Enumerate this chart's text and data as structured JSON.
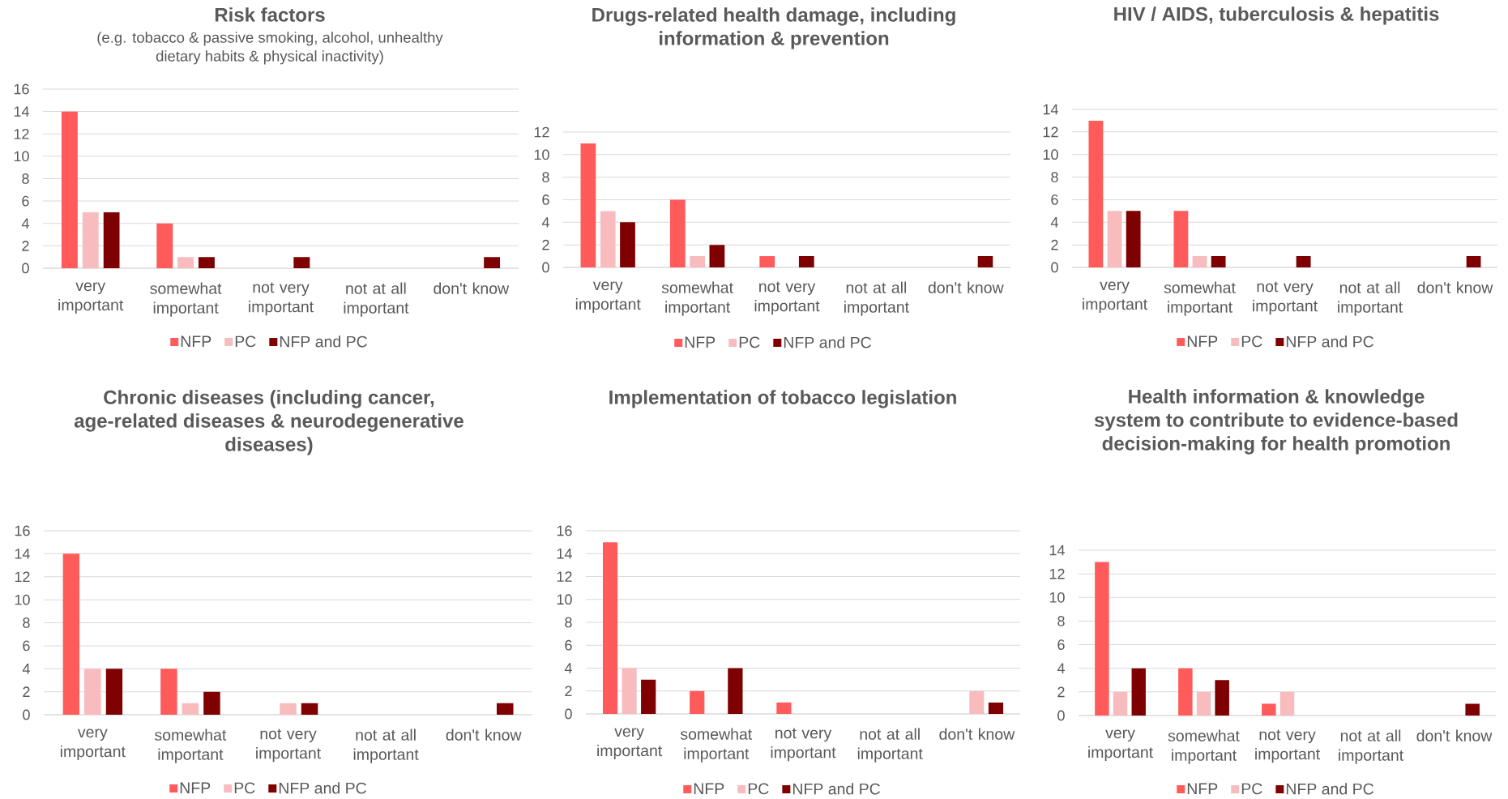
{
  "chart_data": [
    {
      "type": "bar",
      "title": "Risk factors",
      "subtitle": "(e.g. tobacco & passive smoking, alcohol, unhealthy dietary habits & physical inactivity)",
      "categories": [
        "very important",
        "somewhat important",
        "not very important",
        "not at all important",
        "don't know"
      ],
      "series": [
        {
          "name": "NFP",
          "color": "#ff5b5b",
          "values": [
            14,
            4,
            0,
            0,
            0
          ]
        },
        {
          "name": "PC",
          "color": "#f8bcbf",
          "values": [
            5,
            1,
            0,
            0,
            0
          ]
        },
        {
          "name": "NFP and PC",
          "color": "#7f0000",
          "values": [
            5,
            1,
            1,
            0,
            1
          ]
        }
      ],
      "ylim": [
        0,
        16
      ],
      "yticks": [
        0,
        2,
        4,
        6,
        8,
        10,
        12,
        14,
        16
      ],
      "grid": "y",
      "legend": "bottom"
    },
    {
      "type": "bar",
      "title": "Drugs-related health damage, including information & prevention",
      "categories": [
        "very important",
        "somewhat important",
        "not very important",
        "not at all important",
        "don't know"
      ],
      "series": [
        {
          "name": "NFP",
          "color": "#ff5b5b",
          "values": [
            11,
            6,
            1,
            0,
            0
          ]
        },
        {
          "name": "PC",
          "color": "#f8bcbf",
          "values": [
            5,
            1,
            0,
            0,
            0
          ]
        },
        {
          "name": "NFP and PC",
          "color": "#7f0000",
          "values": [
            4,
            2,
            1,
            0,
            1
          ]
        }
      ],
      "ylim": [
        0,
        12
      ],
      "yticks": [
        0,
        2,
        4,
        6,
        8,
        10,
        12
      ],
      "grid": "y",
      "legend": "bottom"
    },
    {
      "type": "bar",
      "title": "HIV / AIDS, tuberculosis & hepatitis",
      "categories": [
        "very important",
        "somewhat important",
        "not very important",
        "not at all important",
        "don't know"
      ],
      "series": [
        {
          "name": "NFP",
          "color": "#ff5b5b",
          "values": [
            13,
            5,
            0,
            0,
            0
          ]
        },
        {
          "name": "PC",
          "color": "#f8bcbf",
          "values": [
            5,
            1,
            0,
            0,
            0
          ]
        },
        {
          "name": "NFP and PC",
          "color": "#7f0000",
          "values": [
            5,
            1,
            1,
            0,
            1
          ]
        }
      ],
      "ylim": [
        0,
        14
      ],
      "yticks": [
        0,
        2,
        4,
        6,
        8,
        10,
        12,
        14
      ],
      "grid": "y",
      "legend": "bottom"
    },
    {
      "type": "bar",
      "title": "Chronic diseases (including cancer, age-related diseases & neurodegenerative diseases)",
      "categories": [
        "very important",
        "somewhat important",
        "not very important",
        "not at all important",
        "don't know"
      ],
      "series": [
        {
          "name": "NFP",
          "color": "#ff5b5b",
          "values": [
            14,
            4,
            0,
            0,
            0
          ]
        },
        {
          "name": "PC",
          "color": "#f8bcbf",
          "values": [
            4,
            1,
            1,
            0,
            0
          ]
        },
        {
          "name": "NFP and PC",
          "color": "#7f0000",
          "values": [
            4,
            2,
            1,
            0,
            1
          ]
        }
      ],
      "ylim": [
        0,
        16
      ],
      "yticks": [
        0,
        2,
        4,
        6,
        8,
        10,
        12,
        14,
        16
      ],
      "grid": "y",
      "legend": "bottom"
    },
    {
      "type": "bar",
      "title": "Implementation of tobacco legislation",
      "categories": [
        "very important",
        "somewhat important",
        "not very important",
        "not at all important",
        "don't know"
      ],
      "series": [
        {
          "name": "NFP",
          "color": "#ff5b5b",
          "values": [
            15,
            2,
            1,
            0,
            0
          ]
        },
        {
          "name": "PC",
          "color": "#f8bcbf",
          "values": [
            4,
            0,
            0,
            0,
            2
          ]
        },
        {
          "name": "NFP and PC",
          "color": "#7f0000",
          "values": [
            3,
            4,
            0,
            0,
            1
          ]
        }
      ],
      "ylim": [
        0,
        16
      ],
      "yticks": [
        0,
        2,
        4,
        6,
        8,
        10,
        12,
        14,
        16
      ],
      "grid": "y",
      "legend": "bottom"
    },
    {
      "type": "bar",
      "title": "Health information & knowledge system to contribute to evidence-based decision-making for health promotion",
      "categories": [
        "very important",
        "somewhat important",
        "not very important",
        "not at all important",
        "don't know"
      ],
      "series": [
        {
          "name": "NFP",
          "color": "#ff5b5b",
          "values": [
            13,
            4,
            1,
            0,
            0
          ]
        },
        {
          "name": "PC",
          "color": "#f8bcbf",
          "values": [
            2,
            2,
            2,
            0,
            0
          ]
        },
        {
          "name": "NFP and PC",
          "color": "#7f0000",
          "values": [
            4,
            3,
            0,
            0,
            1
          ]
        }
      ],
      "ylim": [
        0,
        14
      ],
      "yticks": [
        0,
        2,
        4,
        6,
        8,
        10,
        12,
        14
      ],
      "grid": "y",
      "legend": "bottom"
    }
  ]
}
